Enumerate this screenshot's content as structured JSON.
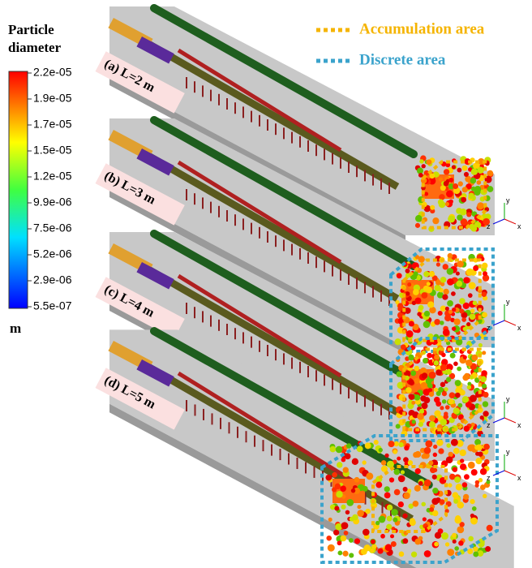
{
  "colorbar": {
    "title": [
      "Particle",
      "diameter"
    ],
    "ticks": [
      "2.2e-05",
      "1.9e-05",
      "1.7e-05",
      "1.5e-05",
      "1.2e-05",
      "9.9e-06",
      "7.5e-06",
      "5.2e-06",
      "2.9e-06",
      "5.5e-07"
    ],
    "unit": "m"
  },
  "legend": [
    {
      "label": "Accumulation area",
      "color": "#f5b400"
    },
    {
      "label": "Discrete area",
      "color": "#3ba3cc"
    }
  ],
  "panels": [
    {
      "label": "(a) L=2 m"
    },
    {
      "label": "(b) L=3 m"
    },
    {
      "label": "(c) L=4 m"
    },
    {
      "label": "(d) L=5 m"
    }
  ],
  "axes": [
    "y",
    "z",
    "x"
  ]
}
